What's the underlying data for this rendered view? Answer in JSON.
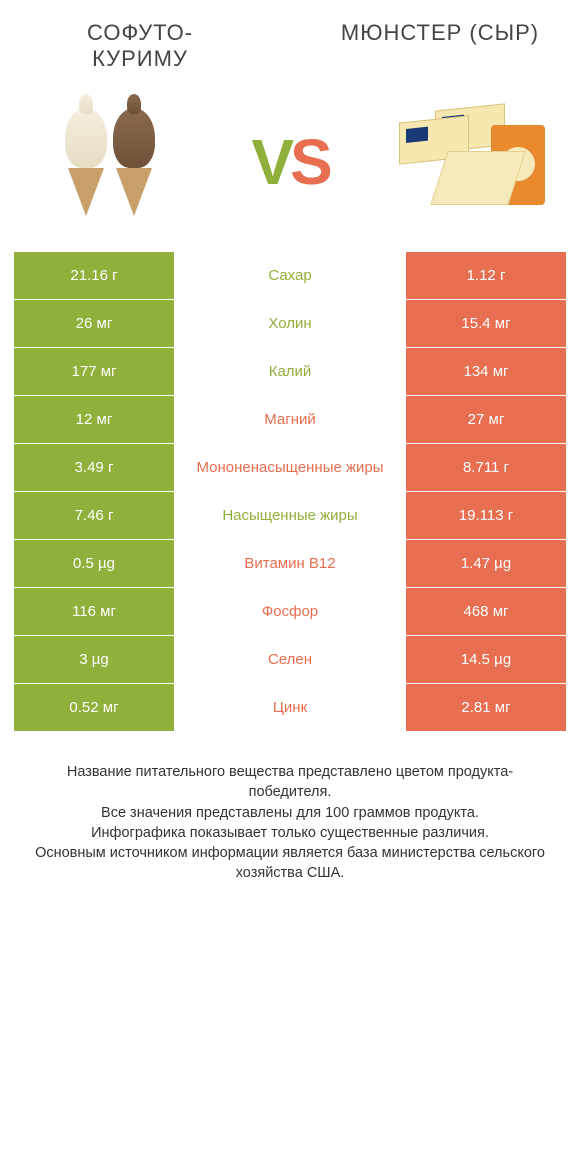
{
  "colors": {
    "left": "#8fb03a",
    "right": "#e76e50",
    "row_border": "#ffffff",
    "bg": "#ffffff",
    "text": "#333333"
  },
  "products": {
    "left_title": "СОФУТО-КУРИМУ",
    "right_title": "МЮНСТЕР (СЫР)",
    "vs_v": "V",
    "vs_s": "S"
  },
  "rows": [
    {
      "left": "21.16 г",
      "label": "Сахар",
      "right": "1.12 г",
      "winner": "left"
    },
    {
      "left": "26 мг",
      "label": "Холин",
      "right": "15.4 мг",
      "winner": "left"
    },
    {
      "left": "177 мг",
      "label": "Калий",
      "right": "134 мг",
      "winner": "left"
    },
    {
      "left": "12 мг",
      "label": "Магний",
      "right": "27 мг",
      "winner": "right"
    },
    {
      "left": "3.49 г",
      "label": "Мононенасыщенные жиры",
      "right": "8.711 г",
      "winner": "right"
    },
    {
      "left": "7.46 г",
      "label": "Насыщенные жиры",
      "right": "19.113 г",
      "winner": "left"
    },
    {
      "left": "0.5 µg",
      "label": "Витамин B12",
      "right": "1.47 µg",
      "winner": "right"
    },
    {
      "left": "116 мг",
      "label": "Фосфор",
      "right": "468 мг",
      "winner": "right"
    },
    {
      "left": "3 µg",
      "label": "Селен",
      "right": "14.5 µg",
      "winner": "right"
    },
    {
      "left": "0.52 мг",
      "label": "Цинк",
      "right": "2.81 мг",
      "winner": "right"
    }
  ],
  "footer": {
    "line1": "Название питательного вещества представлено цветом продукта-победителя.",
    "line2": "Все значения представлены для 100 граммов продукта.",
    "line3": "Инфографика показывает только существенные различия.",
    "line4": "Основным источником информации является база министерства сельского хозяйства США."
  }
}
